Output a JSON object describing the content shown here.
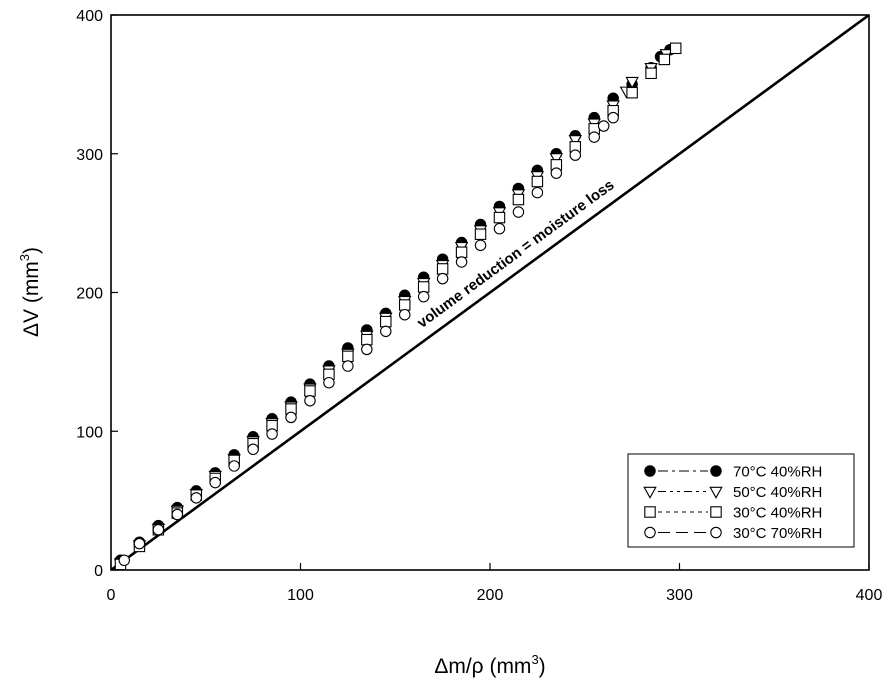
{
  "chart_data": {
    "type": "scatter",
    "title": "",
    "xlabel": "Δm/ρ (mm",
    "xlabel_sup": "3",
    "xlabel_close": ")",
    "ylabel": "ΔV (mm",
    "ylabel_sup": "3",
    "ylabel_close": ")",
    "xlim": [
      0,
      400
    ],
    "ylim": [
      0,
      400
    ],
    "xticks": [
      "0",
      "100",
      "200",
      "300",
      "400"
    ],
    "yticks": [
      "0",
      "100",
      "200",
      "300",
      "400"
    ],
    "grid": false,
    "legend_position": "bottom-right",
    "reference_line": {
      "label": "volume reduction = moisture loss",
      "x": [
        0,
        400
      ],
      "y": [
        0,
        400
      ]
    },
    "series": [
      {
        "name": "70°C 40%RH",
        "marker": "filled-circle",
        "line_style": "— - - ●",
        "x": [
          5,
          15,
          25,
          35,
          45,
          55,
          65,
          75,
          85,
          95,
          105,
          115,
          125,
          135,
          145,
          155,
          165,
          175,
          185,
          195,
          205,
          215,
          225,
          235,
          245,
          255,
          265,
          275,
          285,
          290,
          295
        ],
        "y": [
          7,
          20,
          32,
          45,
          57,
          70,
          83,
          96,
          109,
          121,
          134,
          147,
          160,
          173,
          185,
          198,
          211,
          224,
          236,
          249,
          262,
          275,
          288,
          300,
          313,
          326,
          340,
          350,
          362,
          370,
          375
        ]
      },
      {
        "name": "50°C 40%RH",
        "marker": "open-triangle-down",
        "line_style": "— - - - ▽",
        "x": [
          5,
          15,
          25,
          35,
          45,
          55,
          65,
          75,
          85,
          95,
          105,
          115,
          125,
          135,
          145,
          155,
          165,
          175,
          185,
          195,
          205,
          215,
          225,
          235,
          245,
          255,
          265,
          272,
          275,
          285,
          293
        ],
        "y": [
          5,
          18,
          30,
          43,
          55,
          68,
          80,
          93,
          106,
          118,
          131,
          144,
          156,
          169,
          182,
          194,
          207,
          220,
          233,
          245,
          258,
          271,
          284,
          297,
          310,
          322,
          335,
          345,
          352,
          362,
          372
        ]
      },
      {
        "name": "30°C 40%RH",
        "marker": "open-square",
        "line_style": "- - - - □",
        "x": [
          5,
          15,
          25,
          35,
          45,
          55,
          65,
          75,
          85,
          95,
          105,
          115,
          125,
          135,
          145,
          155,
          165,
          175,
          185,
          195,
          205,
          215,
          225,
          235,
          245,
          255,
          265,
          275,
          285,
          292,
          298
        ],
        "y": [
          4,
          17,
          29,
          41,
          54,
          66,
          79,
          91,
          104,
          116,
          129,
          141,
          154,
          166,
          179,
          191,
          204,
          217,
          229,
          242,
          254,
          267,
          280,
          292,
          305,
          318,
          331,
          344,
          358,
          368,
          376
        ]
      },
      {
        "name": "30°C 70%RH",
        "marker": "open-circle",
        "line_style": "○— — ○",
        "x": [
          7,
          15,
          25,
          35,
          45,
          55,
          65,
          75,
          85,
          95,
          105,
          115,
          125,
          135,
          145,
          155,
          165,
          175,
          185,
          195,
          205,
          215,
          225,
          235,
          245,
          255,
          260,
          265
        ],
        "y": [
          7,
          19,
          29,
          40,
          52,
          63,
          75,
          87,
          98,
          110,
          122,
          135,
          147,
          159,
          172,
          184,
          197,
          210,
          222,
          234,
          246,
          258,
          272,
          286,
          299,
          312,
          320,
          326
        ]
      }
    ]
  }
}
